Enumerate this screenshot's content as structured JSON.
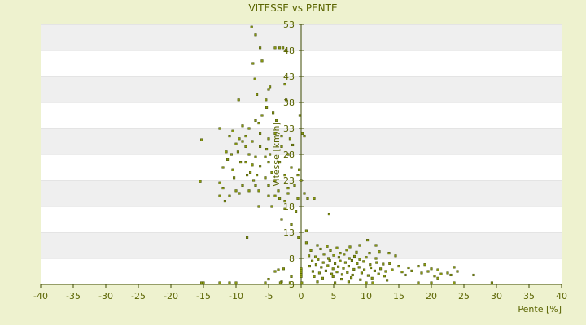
{
  "chart_data": {
    "type": "scatter",
    "title": "VITESSE vs PENTE",
    "xlabel": "Pente [%]",
    "ylabel": "Vitesse [km/h]",
    "xlim": [
      -40,
      40
    ],
    "ylim": [
      3,
      53
    ],
    "x_ticks": [
      -40,
      -35,
      -30,
      -25,
      -20,
      -15,
      -10,
      -5,
      0,
      5,
      10,
      15,
      20,
      25,
      30,
      35,
      40
    ],
    "y_ticks": [
      3,
      8,
      13,
      18,
      23,
      28,
      33,
      38,
      43,
      48,
      53
    ],
    "grid": "horizontal bands",
    "legend": "none",
    "colors": {
      "background": "#eef2cf",
      "plot_band_light": "#ffffff",
      "plot_band_dark": "#efefef",
      "marker_fill": "#8a9a10",
      "marker_edge": "#3e4a00",
      "text": "#5a6400",
      "axis": "#3e4a00"
    },
    "series": [
      {
        "points": [
          [
            -7.6,
            52.5
          ],
          [
            -7.0,
            51.0
          ],
          [
            -6.3,
            48.5
          ],
          [
            -4.0,
            48.5
          ],
          [
            -3.3,
            48.5
          ],
          [
            -2.8,
            48.5
          ],
          [
            -2.3,
            48.0
          ],
          [
            -7.4,
            45.5
          ],
          [
            -6.0,
            46.0
          ],
          [
            -7.1,
            42.5
          ],
          [
            -2.5,
            41.5
          ],
          [
            -5.0,
            40.5
          ],
          [
            -4.8,
            41.0
          ],
          [
            -6.8,
            39.5
          ],
          [
            -9.6,
            38.5
          ],
          [
            -5.4,
            38.5
          ],
          [
            -2.3,
            38.5
          ],
          [
            -5.3,
            37.0
          ],
          [
            -4.3,
            36.0
          ],
          [
            -6.0,
            35.5
          ],
          [
            -7.0,
            34.5
          ],
          [
            -6.5,
            34.0
          ],
          [
            -3.8,
            34.5
          ],
          [
            -0.2,
            35.5
          ],
          [
            -12.5,
            33.0
          ],
          [
            -10.5,
            32.5
          ],
          [
            -9.0,
            33.5
          ],
          [
            -8.0,
            33.0
          ],
          [
            -6.3,
            32.0
          ],
          [
            -4.0,
            32.0
          ],
          [
            -11.0,
            31.5
          ],
          [
            -9.5,
            31.0
          ],
          [
            -9.0,
            30.5
          ],
          [
            -8.5,
            31.5
          ],
          [
            -7.5,
            30.5
          ],
          [
            -5.0,
            31.0
          ],
          [
            -3.0,
            31.5
          ],
          [
            -1.7,
            31.0
          ],
          [
            0.2,
            32.0
          ],
          [
            0.5,
            31.5
          ],
          [
            -15.3,
            30.8
          ],
          [
            -10.0,
            30.0
          ],
          [
            -8.5,
            29.5
          ],
          [
            -6.3,
            29.5
          ],
          [
            -5.3,
            29.0
          ],
          [
            -3.0,
            29.5
          ],
          [
            -1.3,
            29.8
          ],
          [
            -11.5,
            28.5
          ],
          [
            -10.7,
            28.0
          ],
          [
            -9.7,
            28.5
          ],
          [
            -8.0,
            28.0
          ],
          [
            -7.0,
            27.5
          ],
          [
            -5.5,
            27.5
          ],
          [
            -4.8,
            28.0
          ],
          [
            -2.0,
            28.0
          ],
          [
            -11.3,
            27.0
          ],
          [
            -9.3,
            26.5
          ],
          [
            -8.5,
            26.5
          ],
          [
            -7.5,
            26.0
          ],
          [
            -6.3,
            25.7
          ],
          [
            -5.0,
            26.5
          ],
          [
            -3.3,
            26.5
          ],
          [
            -12.0,
            25.5
          ],
          [
            -10.5,
            25.0
          ],
          [
            -7.8,
            24.5
          ],
          [
            -6.8,
            24.0
          ],
          [
            -4.5,
            24.5
          ],
          [
            -1.5,
            25.5
          ],
          [
            -0.3,
            25.0
          ],
          [
            -10.3,
            23.5
          ],
          [
            -8.3,
            24.0
          ],
          [
            -7.3,
            23.0
          ],
          [
            -5.5,
            23.5
          ],
          [
            -4.0,
            23.0
          ],
          [
            -2.5,
            24.0
          ],
          [
            -0.5,
            24.0
          ],
          [
            0.0,
            23.0
          ],
          [
            -15.5,
            22.8
          ],
          [
            -12.5,
            22.5
          ],
          [
            -9.0,
            22.0
          ],
          [
            -7.0,
            22.0
          ],
          [
            -5.0,
            22.0
          ],
          [
            -1.0,
            22.0
          ],
          [
            -12.0,
            21.5
          ],
          [
            -10.0,
            21.0
          ],
          [
            -8.0,
            21.0
          ],
          [
            -6.5,
            21.0
          ],
          [
            -3.5,
            21.0
          ],
          [
            -2.0,
            21.5
          ],
          [
            -12.5,
            20.0
          ],
          [
            -11.0,
            20.0
          ],
          [
            -9.5,
            20.5
          ],
          [
            -5.0,
            20.0
          ],
          [
            -4.0,
            20.0
          ],
          [
            -2.0,
            20.5
          ],
          [
            0.5,
            20.5
          ],
          [
            -11.7,
            19.0
          ],
          [
            -3.3,
            19.5
          ],
          [
            -2.5,
            19.0
          ],
          [
            -0.5,
            19.5
          ],
          [
            1.0,
            19.5
          ],
          [
            2.0,
            19.5
          ],
          [
            -6.5,
            18.0
          ],
          [
            -4.5,
            18.0
          ],
          [
            -2.5,
            17.5
          ],
          [
            -0.8,
            17.0
          ],
          [
            4.3,
            16.5
          ],
          [
            -3.0,
            15.5
          ],
          [
            -1.5,
            14.5
          ],
          [
            0.8,
            13.3
          ],
          [
            -8.3,
            12.0
          ],
          [
            -0.4,
            12.0
          ],
          [
            0.8,
            11.0
          ],
          [
            2.5,
            10.5
          ],
          [
            4.0,
            10.3
          ],
          [
            5.5,
            10.0
          ],
          [
            9.0,
            10.5
          ],
          [
            10.2,
            11.5
          ],
          [
            11.5,
            10.5
          ],
          [
            7.5,
            10.2
          ],
          [
            1.5,
            9.5
          ],
          [
            3.0,
            9.8
          ],
          [
            4.5,
            9.5
          ],
          [
            6.0,
            9.0
          ],
          [
            7.0,
            9.6
          ],
          [
            8.5,
            9.2
          ],
          [
            10.5,
            9.0
          ],
          [
            12.0,
            9.3
          ],
          [
            13.5,
            9.0
          ],
          [
            1.2,
            8.5
          ],
          [
            2.2,
            8.3
          ],
          [
            3.5,
            8.8
          ],
          [
            4.2,
            8.0
          ],
          [
            5.0,
            8.6
          ],
          [
            5.8,
            8.2
          ],
          [
            6.6,
            8.8
          ],
          [
            7.4,
            8.0
          ],
          [
            8.2,
            8.4
          ],
          [
            9.0,
            7.8
          ],
          [
            10.0,
            8.2
          ],
          [
            11.5,
            8.0
          ],
          [
            14.5,
            8.5
          ],
          [
            1.7,
            7.5
          ],
          [
            2.6,
            7.8
          ],
          [
            3.4,
            7.2
          ],
          [
            4.4,
            7.6
          ],
          [
            5.2,
            7.0
          ],
          [
            6.0,
            7.5
          ],
          [
            6.8,
            7.2
          ],
          [
            7.8,
            7.6
          ],
          [
            8.6,
            7.0
          ],
          [
            9.6,
            7.4
          ],
          [
            10.6,
            6.8
          ],
          [
            11.6,
            7.2
          ],
          [
            12.6,
            6.9
          ],
          [
            13.6,
            7.0
          ],
          [
            15.0,
            6.5
          ],
          [
            16.5,
            6.2
          ],
          [
            18.0,
            6.5
          ],
          [
            19.0,
            6.8
          ],
          [
            20.0,
            6.0
          ],
          [
            21.0,
            5.8
          ],
          [
            23.5,
            6.3
          ],
          [
            24.0,
            5.5
          ],
          [
            1.3,
            6.5
          ],
          [
            2.3,
            6.8
          ],
          [
            3.1,
            6.3
          ],
          [
            4.1,
            6.6
          ],
          [
            4.9,
            6.0
          ],
          [
            5.7,
            6.4
          ],
          [
            6.5,
            6.1
          ],
          [
            7.3,
            6.5
          ],
          [
            8.1,
            5.9
          ],
          [
            8.9,
            6.3
          ],
          [
            9.7,
            5.8
          ],
          [
            10.7,
            6.2
          ],
          [
            11.3,
            5.6
          ],
          [
            12.2,
            6.0
          ],
          [
            13.0,
            5.5
          ],
          [
            14.0,
            5.8
          ],
          [
            15.5,
            5.4
          ],
          [
            17.0,
            5.6
          ],
          [
            18.5,
            5.2
          ],
          [
            19.5,
            5.5
          ],
          [
            21.5,
            5.0
          ],
          [
            22.5,
            5.2
          ],
          [
            23.0,
            4.8
          ],
          [
            26.5,
            4.8
          ],
          [
            1.8,
            5.5
          ],
          [
            2.8,
            5.2
          ],
          [
            3.8,
            5.6
          ],
          [
            4.7,
            5.0
          ],
          [
            5.5,
            5.4
          ],
          [
            6.3,
            4.9
          ],
          [
            7.1,
            5.3
          ],
          [
            7.9,
            4.8
          ],
          [
            9.3,
            5.2
          ],
          [
            10.3,
            4.7
          ],
          [
            11.9,
            5.0
          ],
          [
            12.8,
            4.6
          ],
          [
            16.0,
            4.8
          ],
          [
            20.5,
            4.6
          ],
          [
            21.0,
            4.2
          ],
          [
            2.0,
            4.5
          ],
          [
            3.3,
            4.2
          ],
          [
            4.9,
            4.5
          ],
          [
            6.2,
            4.0
          ],
          [
            7.7,
            4.3
          ],
          [
            9.1,
            3.9
          ],
          [
            10.9,
            4.2
          ],
          [
            13.2,
            3.8
          ],
          [
            2.5,
            3.5
          ],
          [
            5.2,
            3.2
          ],
          [
            7.3,
            3.5
          ],
          [
            10.0,
            3.3
          ],
          [
            0.0,
            6.0
          ],
          [
            0.0,
            5.7
          ],
          [
            0.0,
            5.3
          ],
          [
            0.0,
            4.9
          ],
          [
            0.0,
            4.5
          ],
          [
            -5.0,
            4.0
          ],
          [
            -4.0,
            5.5
          ],
          [
            -3.5,
            5.8
          ],
          [
            -2.7,
            6.0
          ],
          [
            -1.5,
            4.5
          ],
          [
            -3.0,
            3.5
          ],
          [
            -1.7,
            3.3
          ],
          [
            -3.2,
            2.9
          ],
          [
            -15.3,
            1.8
          ],
          [
            -15.0,
            1.8
          ],
          [
            -12.5,
            2.6
          ],
          [
            -11.0,
            2.3
          ],
          [
            -10.0,
            2.5
          ],
          [
            -5.5,
            2.1
          ],
          [
            0.1,
            1.8
          ],
          [
            11.0,
            2.3
          ],
          [
            18.0,
            2.0
          ],
          [
            20.0,
            2.0
          ],
          [
            23.5,
            2.5
          ],
          [
            29.3,
            2.0
          ]
        ]
      }
    ]
  }
}
